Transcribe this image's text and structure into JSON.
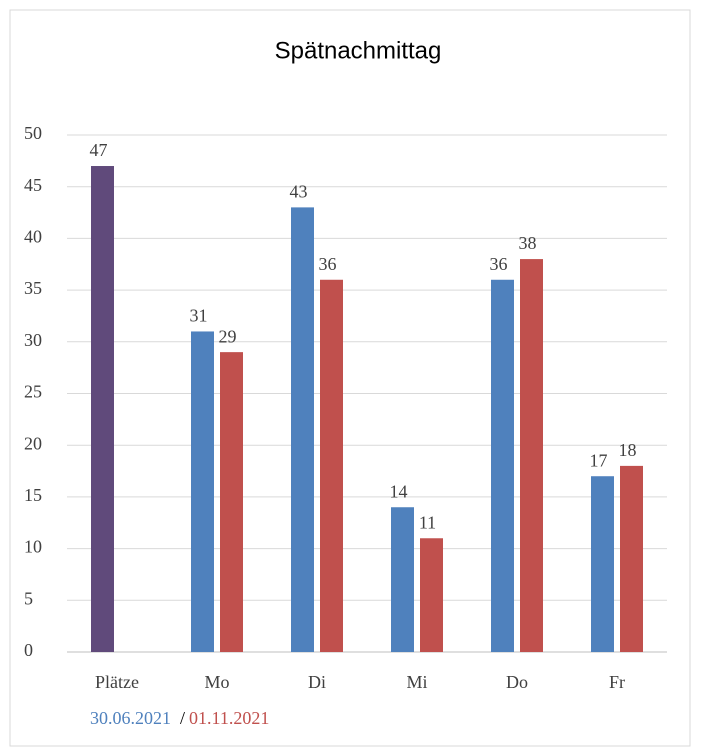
{
  "chart_data": {
    "type": "bar",
    "title": "Spätnachmittag",
    "categories": [
      "Plätze",
      "Mo",
      "Di",
      "Mi",
      "Do",
      "Fr"
    ],
    "series": [
      {
        "name": "30.06.2021",
        "color": "#4f81bd",
        "values": [
          47,
          31,
          43,
          14,
          36,
          17
        ]
      },
      {
        "name": "01.11.2021",
        "color": "#c0504d",
        "values": [
          null,
          29,
          36,
          11,
          38,
          18
        ]
      }
    ],
    "highlight_index": 0,
    "highlight_color": "#604a7b",
    "legend_separator": "/",
    "ylim": [
      0,
      50
    ],
    "yticks": [
      0,
      5,
      10,
      15,
      20,
      25,
      30,
      35,
      40,
      45,
      50
    ],
    "grid": true
  }
}
